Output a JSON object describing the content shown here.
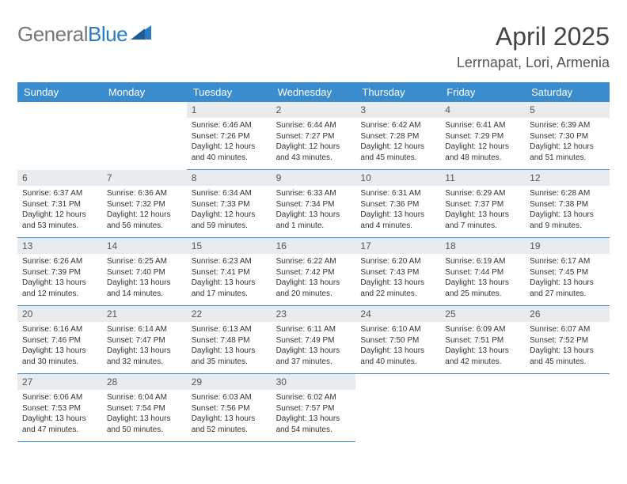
{
  "logo": {
    "text_gray": "General",
    "text_blue": "Blue"
  },
  "title": "April 2025",
  "location": "Lerrnapat, Lori, Armenia",
  "colors": {
    "header_bg": "#3b8ccc",
    "header_text": "#ffffff",
    "daynum_bg": "#e8ecef",
    "border": "#3b8ccc",
    "text": "#333333"
  },
  "layout": {
    "columns": 7,
    "rows": 5,
    "leading_blanks": 2,
    "trailing_blanks": 3
  },
  "weekdays": [
    "Sunday",
    "Monday",
    "Tuesday",
    "Wednesday",
    "Thursday",
    "Friday",
    "Saturday"
  ],
  "days": [
    {
      "n": "1",
      "sunrise": "6:46 AM",
      "sunset": "7:26 PM",
      "daylight": "12 hours and 40 minutes."
    },
    {
      "n": "2",
      "sunrise": "6:44 AM",
      "sunset": "7:27 PM",
      "daylight": "12 hours and 43 minutes."
    },
    {
      "n": "3",
      "sunrise": "6:42 AM",
      "sunset": "7:28 PM",
      "daylight": "12 hours and 45 minutes."
    },
    {
      "n": "4",
      "sunrise": "6:41 AM",
      "sunset": "7:29 PM",
      "daylight": "12 hours and 48 minutes."
    },
    {
      "n": "5",
      "sunrise": "6:39 AM",
      "sunset": "7:30 PM",
      "daylight": "12 hours and 51 minutes."
    },
    {
      "n": "6",
      "sunrise": "6:37 AM",
      "sunset": "7:31 PM",
      "daylight": "12 hours and 53 minutes."
    },
    {
      "n": "7",
      "sunrise": "6:36 AM",
      "sunset": "7:32 PM",
      "daylight": "12 hours and 56 minutes."
    },
    {
      "n": "8",
      "sunrise": "6:34 AM",
      "sunset": "7:33 PM",
      "daylight": "12 hours and 59 minutes."
    },
    {
      "n": "9",
      "sunrise": "6:33 AM",
      "sunset": "7:34 PM",
      "daylight": "13 hours and 1 minute."
    },
    {
      "n": "10",
      "sunrise": "6:31 AM",
      "sunset": "7:36 PM",
      "daylight": "13 hours and 4 minutes."
    },
    {
      "n": "11",
      "sunrise": "6:29 AM",
      "sunset": "7:37 PM",
      "daylight": "13 hours and 7 minutes."
    },
    {
      "n": "12",
      "sunrise": "6:28 AM",
      "sunset": "7:38 PM",
      "daylight": "13 hours and 9 minutes."
    },
    {
      "n": "13",
      "sunrise": "6:26 AM",
      "sunset": "7:39 PM",
      "daylight": "13 hours and 12 minutes."
    },
    {
      "n": "14",
      "sunrise": "6:25 AM",
      "sunset": "7:40 PM",
      "daylight": "13 hours and 14 minutes."
    },
    {
      "n": "15",
      "sunrise": "6:23 AM",
      "sunset": "7:41 PM",
      "daylight": "13 hours and 17 minutes."
    },
    {
      "n": "16",
      "sunrise": "6:22 AM",
      "sunset": "7:42 PM",
      "daylight": "13 hours and 20 minutes."
    },
    {
      "n": "17",
      "sunrise": "6:20 AM",
      "sunset": "7:43 PM",
      "daylight": "13 hours and 22 minutes."
    },
    {
      "n": "18",
      "sunrise": "6:19 AM",
      "sunset": "7:44 PM",
      "daylight": "13 hours and 25 minutes."
    },
    {
      "n": "19",
      "sunrise": "6:17 AM",
      "sunset": "7:45 PM",
      "daylight": "13 hours and 27 minutes."
    },
    {
      "n": "20",
      "sunrise": "6:16 AM",
      "sunset": "7:46 PM",
      "daylight": "13 hours and 30 minutes."
    },
    {
      "n": "21",
      "sunrise": "6:14 AM",
      "sunset": "7:47 PM",
      "daylight": "13 hours and 32 minutes."
    },
    {
      "n": "22",
      "sunrise": "6:13 AM",
      "sunset": "7:48 PM",
      "daylight": "13 hours and 35 minutes."
    },
    {
      "n": "23",
      "sunrise": "6:11 AM",
      "sunset": "7:49 PM",
      "daylight": "13 hours and 37 minutes."
    },
    {
      "n": "24",
      "sunrise": "6:10 AM",
      "sunset": "7:50 PM",
      "daylight": "13 hours and 40 minutes."
    },
    {
      "n": "25",
      "sunrise": "6:09 AM",
      "sunset": "7:51 PM",
      "daylight": "13 hours and 42 minutes."
    },
    {
      "n": "26",
      "sunrise": "6:07 AM",
      "sunset": "7:52 PM",
      "daylight": "13 hours and 45 minutes."
    },
    {
      "n": "27",
      "sunrise": "6:06 AM",
      "sunset": "7:53 PM",
      "daylight": "13 hours and 47 minutes."
    },
    {
      "n": "28",
      "sunrise": "6:04 AM",
      "sunset": "7:54 PM",
      "daylight": "13 hours and 50 minutes."
    },
    {
      "n": "29",
      "sunrise": "6:03 AM",
      "sunset": "7:56 PM",
      "daylight": "13 hours and 52 minutes."
    },
    {
      "n": "30",
      "sunrise": "6:02 AM",
      "sunset": "7:57 PM",
      "daylight": "13 hours and 54 minutes."
    }
  ],
  "labels": {
    "sunrise": "Sunrise:",
    "sunset": "Sunset:",
    "daylight": "Daylight:"
  }
}
